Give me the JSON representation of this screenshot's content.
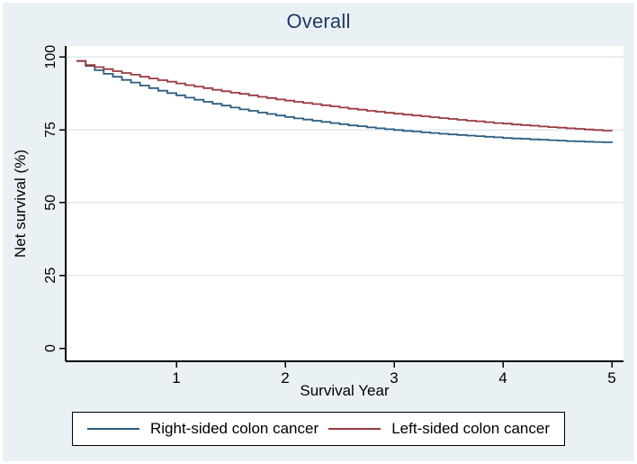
{
  "figure": {
    "title": "Overall",
    "title_color": "#1f3864",
    "background_color": "#eaf1f5",
    "plot_background": "#ffffff",
    "grid_color": "#e0eaf0",
    "axis_color": "#000000"
  },
  "axes": {
    "x_label": "Survival Year",
    "y_label": "Net survival (%)",
    "x_ticks": [
      1,
      2,
      3,
      4,
      5
    ],
    "y_ticks": [
      0,
      25,
      50,
      75,
      100
    ]
  },
  "legend": {
    "entries": [
      {
        "label": "Right-sided colon cancer",
        "color": "#2b5d80"
      },
      {
        "label": "Left-sided colon cancer",
        "color": "#9a3a3e"
      }
    ]
  },
  "chart_data": {
    "type": "line",
    "subtype": "step-survival",
    "title": "Overall",
    "xlabel": "Survival Year",
    "ylabel": "Net survival (%)",
    "xlim": [
      0,
      5.11
    ],
    "ylim": [
      0,
      103.8
    ],
    "x_tick_labels": [
      "1",
      "2",
      "3",
      "4",
      "5"
    ],
    "y_tick_labels": [
      "0",
      "25",
      "50",
      "75",
      "100"
    ],
    "grid": "horizontal-only",
    "legend_position": "bottom",
    "x_unit": "years (monthly steps)",
    "x": [
      0.083,
      0.167,
      0.25,
      0.333,
      0.417,
      0.5,
      0.583,
      0.667,
      0.75,
      0.833,
      0.917,
      1,
      1.083,
      1.167,
      1.25,
      1.333,
      1.417,
      1.5,
      1.583,
      1.667,
      1.75,
      1.833,
      1.917,
      2,
      2.083,
      2.167,
      2.25,
      2.333,
      2.417,
      2.5,
      2.583,
      2.667,
      2.75,
      2.833,
      2.917,
      3,
      3.083,
      3.167,
      3.25,
      3.333,
      3.417,
      3.5,
      3.583,
      3.667,
      3.75,
      3.833,
      3.917,
      4,
      4.083,
      4.167,
      4.25,
      4.333,
      4.417,
      4.5,
      4.583,
      4.667,
      4.75,
      4.833,
      4.917,
      5
    ],
    "series": [
      {
        "name": "Right-sided colon cancer",
        "color": "#2b5d80",
        "values": [
          98.6,
          96.9,
          95.4,
          94.2,
          93.2,
          92.1,
          91.2,
          90.2,
          89.3,
          88.4,
          87.6,
          86.8,
          86.0,
          85.3,
          84.6,
          83.9,
          83.3,
          82.6,
          82.0,
          81.5,
          80.9,
          80.4,
          79.9,
          79.4,
          78.9,
          78.5,
          78.1,
          77.7,
          77.3,
          76.9,
          76.5,
          76.2,
          75.8,
          75.5,
          75.2,
          74.9,
          74.6,
          74.4,
          74.1,
          73.9,
          73.6,
          73.4,
          73.2,
          73.0,
          72.8,
          72.6,
          72.4,
          72.2,
          72.0,
          71.9,
          71.7,
          71.6,
          71.4,
          71.3,
          71.1,
          71.0,
          70.9,
          70.8,
          70.7,
          70.5
        ]
      },
      {
        "name": "Left-sided colon cancer",
        "color": "#9a3a3e",
        "values": [
          98.6,
          97.2,
          96.5,
          95.8,
          95.1,
          94.5,
          93.9,
          93.2,
          92.6,
          92.0,
          91.5,
          90.9,
          90.3,
          89.8,
          89.3,
          88.7,
          88.2,
          87.7,
          87.3,
          86.8,
          86.3,
          85.9,
          85.4,
          85.0,
          84.6,
          84.2,
          83.8,
          83.4,
          83.0,
          82.6,
          82.2,
          81.9,
          81.5,
          81.2,
          80.8,
          80.5,
          80.2,
          79.9,
          79.6,
          79.3,
          79.0,
          78.7,
          78.4,
          78.1,
          77.9,
          77.6,
          77.3,
          77.1,
          76.8,
          76.6,
          76.4,
          76.1,
          75.9,
          75.7,
          75.5,
          75.3,
          75.1,
          74.9,
          74.7,
          74.5
        ]
      }
    ]
  }
}
